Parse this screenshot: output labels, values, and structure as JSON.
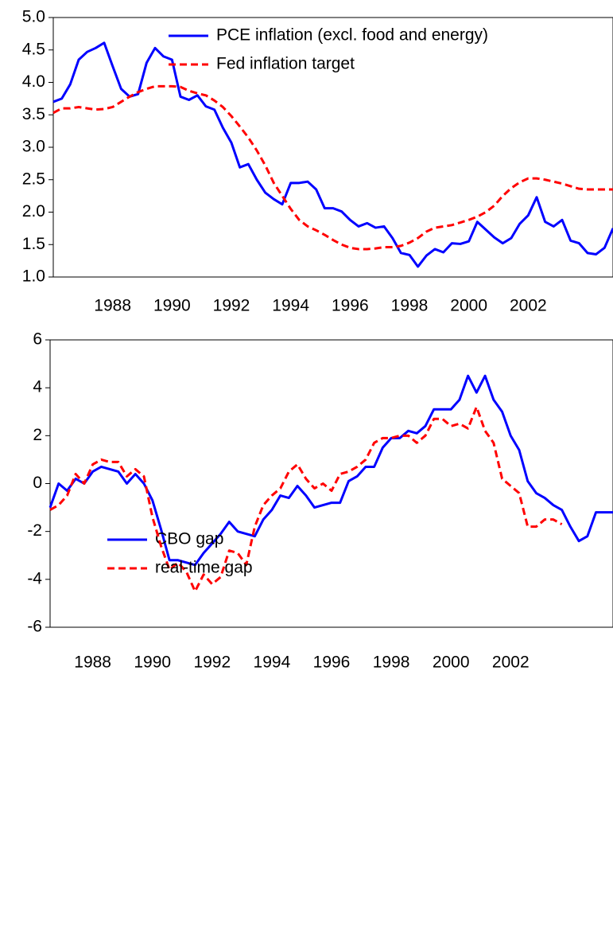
{
  "chart_data": [
    {
      "type": "line",
      "categories": [
        null,
        null,
        null,
        null,
        null,
        null,
        null,
        "1988",
        null,
        null,
        null,
        null,
        null,
        null,
        "1990",
        null,
        null,
        null,
        null,
        null,
        null,
        "1992",
        null,
        null,
        null,
        null,
        null,
        null,
        "1994",
        null,
        null,
        null,
        null,
        null,
        null,
        "1996",
        null,
        null,
        null,
        null,
        null,
        null,
        "1998",
        null,
        null,
        null,
        null,
        null,
        null,
        "2000",
        null,
        null,
        null,
        null,
        null,
        null,
        "2002",
        null,
        null,
        null,
        null,
        null,
        null,
        null,
        null,
        null,
        null
      ],
      "series": [
        {
          "name": "PCE inflation (excl. food and energy)",
          "color": "#0000ff",
          "dash": false,
          "values": [
            3.7,
            3.75,
            3.97,
            4.35,
            4.47,
            4.53,
            4.61,
            4.25,
            3.9,
            3.78,
            3.82,
            4.3,
            4.53,
            4.4,
            4.35,
            3.78,
            3.73,
            3.8,
            3.63,
            3.58,
            3.3,
            3.07,
            2.69,
            2.74,
            2.5,
            2.3,
            2.2,
            2.12,
            2.45,
            2.45,
            2.47,
            2.35,
            2.06,
            2.06,
            2.01,
            1.88,
            1.78,
            1.83,
            1.76,
            1.78,
            1.6,
            1.37,
            1.34,
            1.16,
            1.33,
            1.43,
            1.38,
            1.52,
            1.51,
            1.55,
            1.85,
            1.73,
            1.61,
            1.52,
            1.6,
            1.82,
            1.95,
            2.23,
            1.85,
            1.78,
            1.88,
            1.56,
            1.52,
            1.37,
            1.35,
            1.45,
            1.75
          ]
        },
        {
          "name": "Fed inflation target",
          "color": "#ff0000",
          "dash": true,
          "values": [
            3.53,
            3.6,
            3.6,
            3.62,
            3.6,
            3.58,
            3.59,
            3.62,
            3.7,
            3.78,
            3.85,
            3.9,
            3.94,
            3.94,
            3.94,
            3.93,
            3.87,
            3.83,
            3.8,
            3.72,
            3.62,
            3.48,
            3.32,
            3.15,
            2.95,
            2.72,
            2.45,
            2.25,
            2.05,
            1.88,
            1.78,
            1.72,
            1.65,
            1.57,
            1.5,
            1.45,
            1.43,
            1.43,
            1.44,
            1.46,
            1.46,
            1.48,
            1.53,
            1.6,
            1.7,
            1.76,
            1.78,
            1.8,
            1.84,
            1.88,
            1.93,
            2.0,
            2.1,
            2.25,
            2.37,
            2.46,
            2.52,
            2.52,
            2.5,
            2.47,
            2.44,
            2.4,
            2.36,
            2.35,
            2.35,
            2.35,
            2.35
          ]
        }
      ],
      "ylim": [
        1,
        5
      ],
      "yticks": [
        {
          "value": 1,
          "label": "1.0"
        },
        {
          "value": 1.5,
          "label": "1.5"
        },
        {
          "value": 2,
          "label": "2.0"
        },
        {
          "value": 2.5,
          "label": "2.5"
        },
        {
          "value": 3,
          "label": "3.0"
        },
        {
          "value": 3.5,
          "label": "3.5"
        },
        {
          "value": 4,
          "label": "4.0"
        },
        {
          "value": 4.5,
          "label": "4.5"
        },
        {
          "value": 5,
          "label": "5.0"
        }
      ],
      "legend": "top-right"
    },
    {
      "type": "line",
      "categories": [
        null,
        null,
        null,
        null,
        null,
        "1988",
        null,
        null,
        null,
        null,
        null,
        null,
        "1990",
        null,
        null,
        null,
        null,
        null,
        null,
        "1992",
        null,
        null,
        null,
        null,
        null,
        null,
        "1994",
        null,
        null,
        null,
        null,
        null,
        null,
        "1996",
        null,
        null,
        null,
        null,
        null,
        null,
        "1998",
        null,
        null,
        null,
        null,
        null,
        null,
        "2000",
        null,
        null,
        null,
        null,
        null,
        null,
        "2002",
        null,
        null,
        null,
        null,
        null,
        null,
        null,
        null,
        null,
        null,
        null,
        null
      ],
      "series": [
        {
          "name": "CBO gap",
          "color": "#0000ff",
          "dash": false,
          "values": [
            -1.0,
            0.0,
            -0.3,
            0.2,
            0.0,
            0.5,
            0.7,
            0.6,
            0.5,
            0.0,
            0.4,
            0.0,
            -0.7,
            -1.9,
            -3.2,
            -3.2,
            -3.3,
            -3.4,
            -2.9,
            -2.5,
            -2.1,
            -1.6,
            -2.0,
            -2.1,
            -2.2,
            -1.5,
            -1.1,
            -0.5,
            -0.6,
            -0.1,
            -0.5,
            -1.0,
            -0.9,
            -0.8,
            -0.8,
            0.1,
            0.3,
            0.7,
            0.7,
            1.5,
            1.9,
            1.9,
            2.2,
            2.1,
            2.4,
            3.1,
            3.1,
            3.1,
            3.5,
            4.5,
            3.8,
            4.5,
            3.5,
            3.0,
            2.0,
            1.4,
            0.1,
            -0.4,
            -0.6,
            -0.9,
            -1.1,
            -1.8,
            -2.4,
            -2.2,
            -1.2,
            -1.2,
            -1.2
          ]
        },
        {
          "name": "real-time gap",
          "color": "#ff0000",
          "dash": true,
          "values": [
            -1.1,
            -0.9,
            -0.5,
            0.4,
            0.0,
            0.8,
            1.0,
            0.9,
            0.9,
            0.3,
            0.6,
            0.3,
            -1.4,
            -2.6,
            -3.6,
            -3.3,
            -3.7,
            -4.5,
            -3.8,
            -4.2,
            -3.9,
            -2.8,
            -2.9,
            -3.4,
            -1.8,
            -0.9,
            -0.5,
            -0.2,
            0.5,
            0.8,
            0.2,
            -0.2,
            0.0,
            -0.3,
            0.4,
            0.5,
            0.7,
            1.0,
            1.7,
            1.9,
            1.9,
            2.0,
            2.0,
            1.7,
            2.0,
            2.7,
            2.7,
            2.4,
            2.5,
            2.3,
            3.2,
            2.2,
            1.7,
            0.2,
            -0.1,
            -0.4,
            -1.8,
            -1.8,
            -1.5,
            -1.5,
            -1.7,
            null,
            null,
            null,
            null,
            null,
            null
          ]
        }
      ],
      "ylim": [
        -6,
        6
      ],
      "yticks": [
        -6,
        -4,
        -2,
        0,
        2,
        4,
        6
      ],
      "legend": "top-left"
    }
  ]
}
